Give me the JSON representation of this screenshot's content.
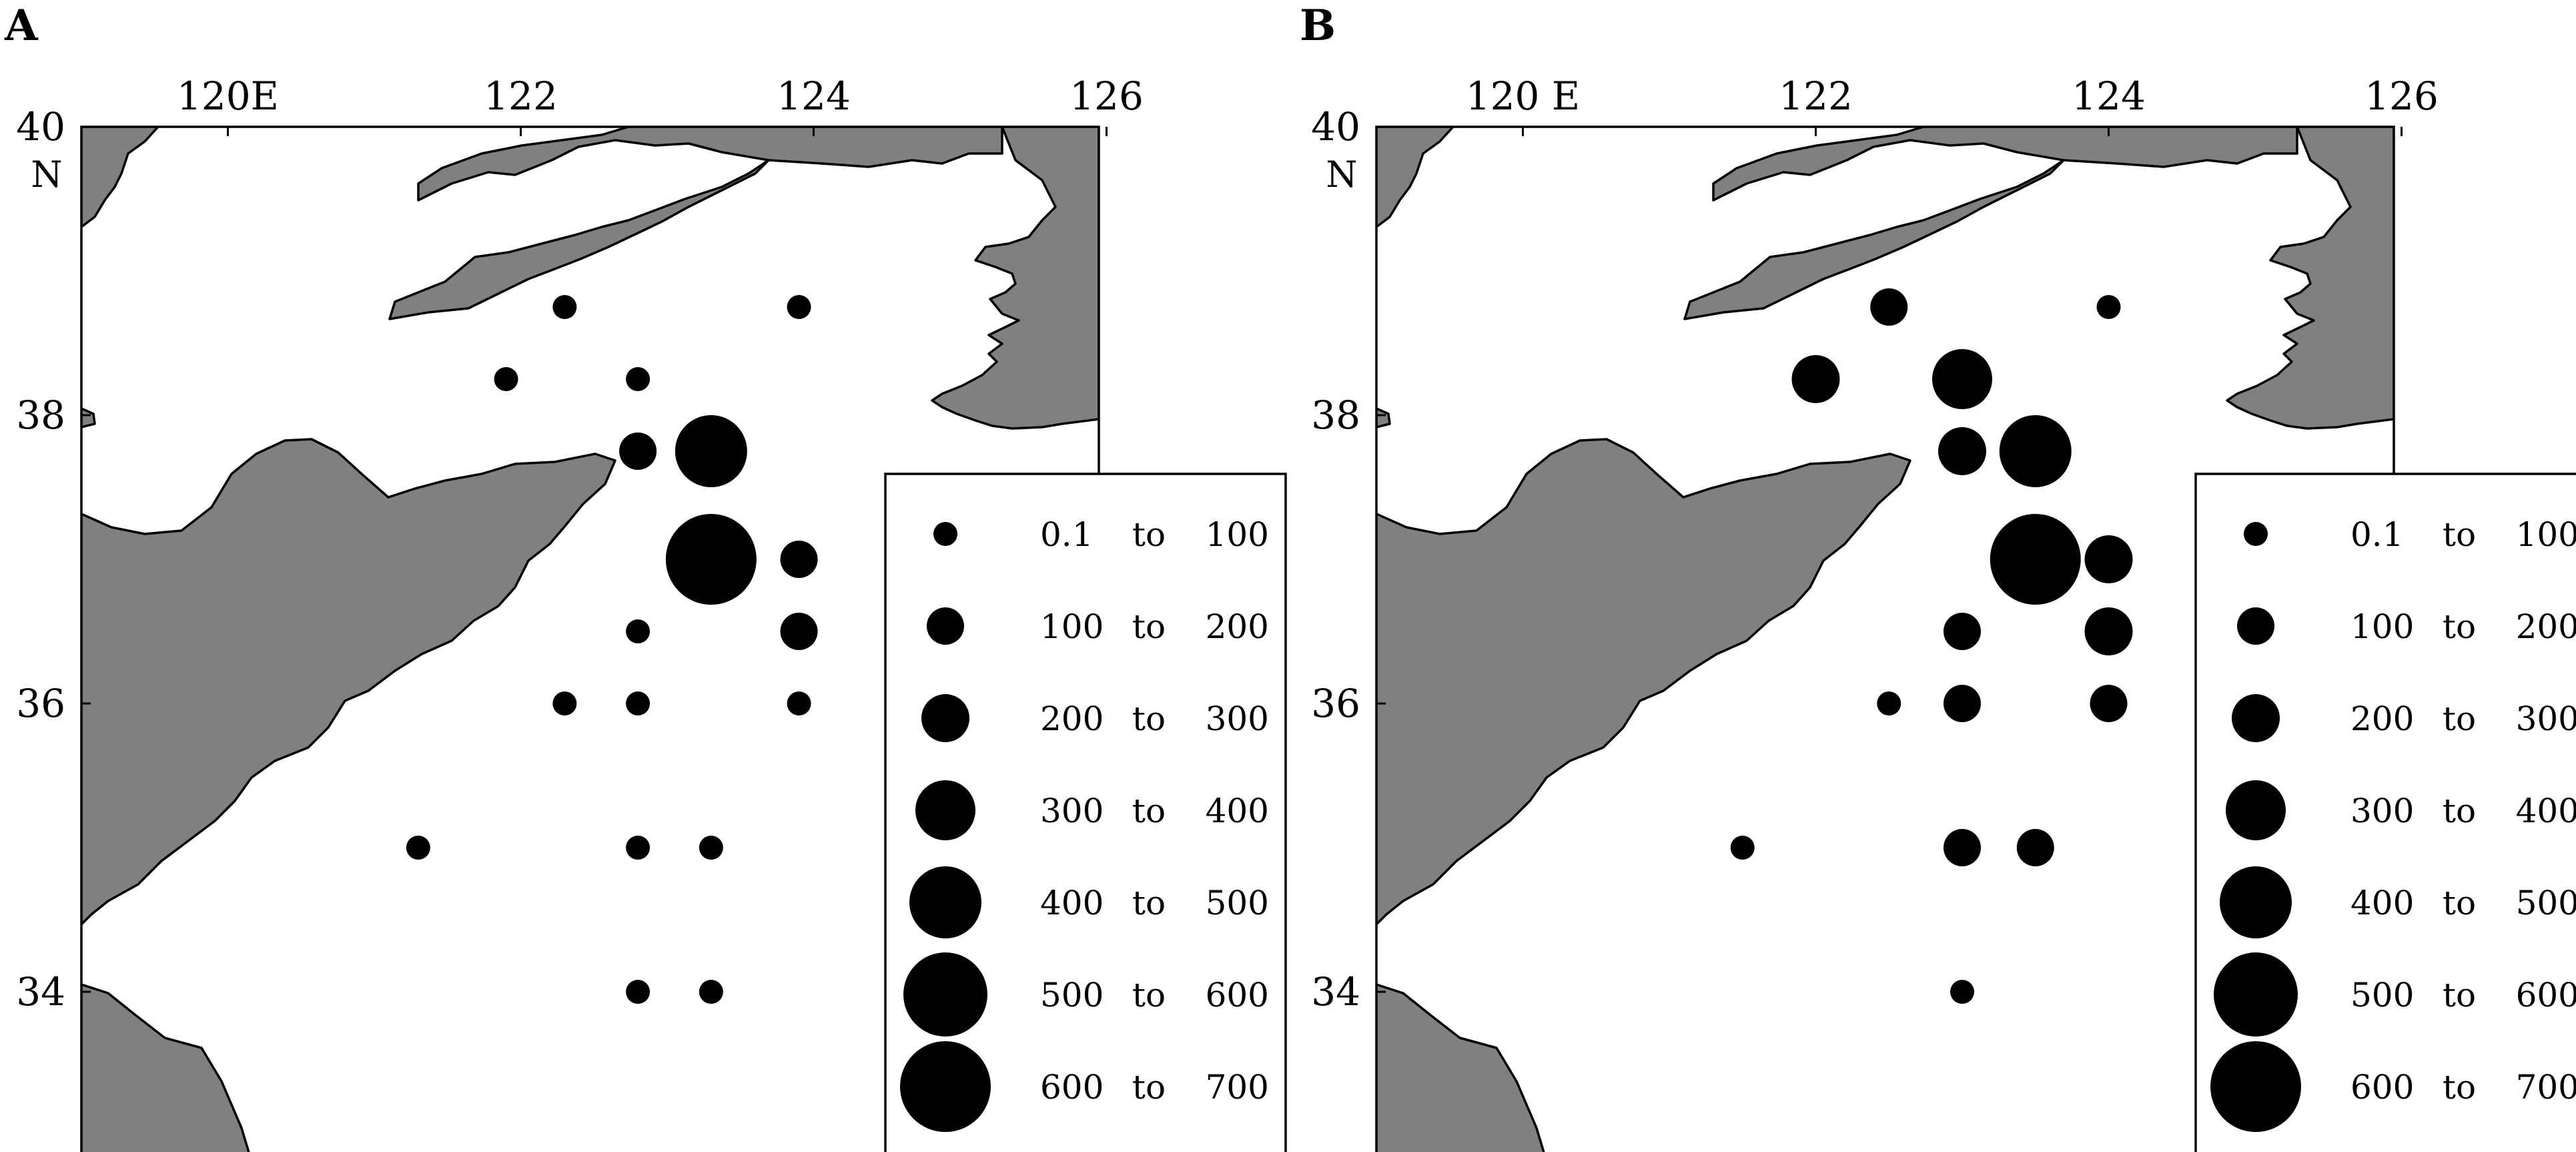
{
  "panels": [
    {
      "id": "A",
      "label": "A",
      "x_tick_labels": [
        "120E",
        "122",
        "124",
        "126"
      ],
      "y_tick_labels": [
        "40",
        "38",
        "36",
        "34"
      ],
      "north_label": "N",
      "stations": [
        {
          "lon": 122.3,
          "lat": 38.75,
          "size": 1
        },
        {
          "lon": 123.9,
          "lat": 38.75,
          "size": 1
        },
        {
          "lon": 121.9,
          "lat": 38.25,
          "size": 1
        },
        {
          "lon": 122.8,
          "lat": 38.25,
          "size": 1
        },
        {
          "lon": 122.8,
          "lat": 37.75,
          "size": 2
        },
        {
          "lon": 123.3,
          "lat": 37.75,
          "size": 5
        },
        {
          "lon": 123.3,
          "lat": 37.0,
          "size": 7
        },
        {
          "lon": 123.9,
          "lat": 37.0,
          "size": 2
        },
        {
          "lon": 123.9,
          "lat": 36.5,
          "size": 2
        },
        {
          "lon": 122.8,
          "lat": 36.5,
          "size": 1
        },
        {
          "lon": 122.3,
          "lat": 36.0,
          "size": 1
        },
        {
          "lon": 122.8,
          "lat": 36.0,
          "size": 1
        },
        {
          "lon": 123.9,
          "lat": 36.0,
          "size": 1
        },
        {
          "lon": 121.3,
          "lat": 35.0,
          "size": 1
        },
        {
          "lon": 122.8,
          "lat": 35.0,
          "size": 1
        },
        {
          "lon": 123.3,
          "lat": 35.0,
          "size": 1
        },
        {
          "lon": 122.8,
          "lat": 34.0,
          "size": 1
        },
        {
          "lon": 123.3,
          "lat": 34.0,
          "size": 1
        }
      ]
    },
    {
      "id": "B",
      "label": "B",
      "x_tick_labels": [
        "120 E",
        "122",
        "124",
        "126"
      ],
      "y_tick_labels": [
        "40",
        "38",
        "36",
        "34"
      ],
      "north_label": "N",
      "stations": [
        {
          "lon": 122.5,
          "lat": 38.75,
          "size": 2
        },
        {
          "lon": 124.0,
          "lat": 38.75,
          "size": 1
        },
        {
          "lon": 122.0,
          "lat": 38.25,
          "size": 3
        },
        {
          "lon": 123.0,
          "lat": 38.25,
          "size": 4
        },
        {
          "lon": 123.0,
          "lat": 37.75,
          "size": 3
        },
        {
          "lon": 123.5,
          "lat": 37.75,
          "size": 5
        },
        {
          "lon": 123.5,
          "lat": 37.0,
          "size": 7
        },
        {
          "lon": 124.0,
          "lat": 37.0,
          "size": 3
        },
        {
          "lon": 124.0,
          "lat": 36.5,
          "size": 3
        },
        {
          "lon": 123.0,
          "lat": 36.5,
          "size": 2
        },
        {
          "lon": 122.5,
          "lat": 36.0,
          "size": 1
        },
        {
          "lon": 123.0,
          "lat": 36.0,
          "size": 2
        },
        {
          "lon": 124.0,
          "lat": 36.0,
          "size": 2
        },
        {
          "lon": 121.5,
          "lat": 35.0,
          "size": 1
        },
        {
          "lon": 123.0,
          "lat": 35.0,
          "size": 2
        },
        {
          "lon": 123.5,
          "lat": 35.0,
          "size": 2
        },
        {
          "lon": 123.0,
          "lat": 34.0,
          "size": 1
        }
      ]
    }
  ],
  "legend": {
    "connector": "to",
    "classes": [
      {
        "size": 1,
        "from": "0.1",
        "to_value": "100"
      },
      {
        "size": 2,
        "from": "100",
        "to_value": "200"
      },
      {
        "size": 3,
        "from": "200",
        "to_value": "300"
      },
      {
        "size": 4,
        "from": "300",
        "to_value": "400"
      },
      {
        "size": 5,
        "from": "400",
        "to_value": "500"
      },
      {
        "size": 6,
        "from": "500",
        "to_value": "600"
      },
      {
        "size": 7,
        "from": "600",
        "to_value": "700"
      }
    ]
  },
  "colors": {
    "land": "#808080",
    "sea": "#ffffff",
    "symbol": "#000000"
  }
}
